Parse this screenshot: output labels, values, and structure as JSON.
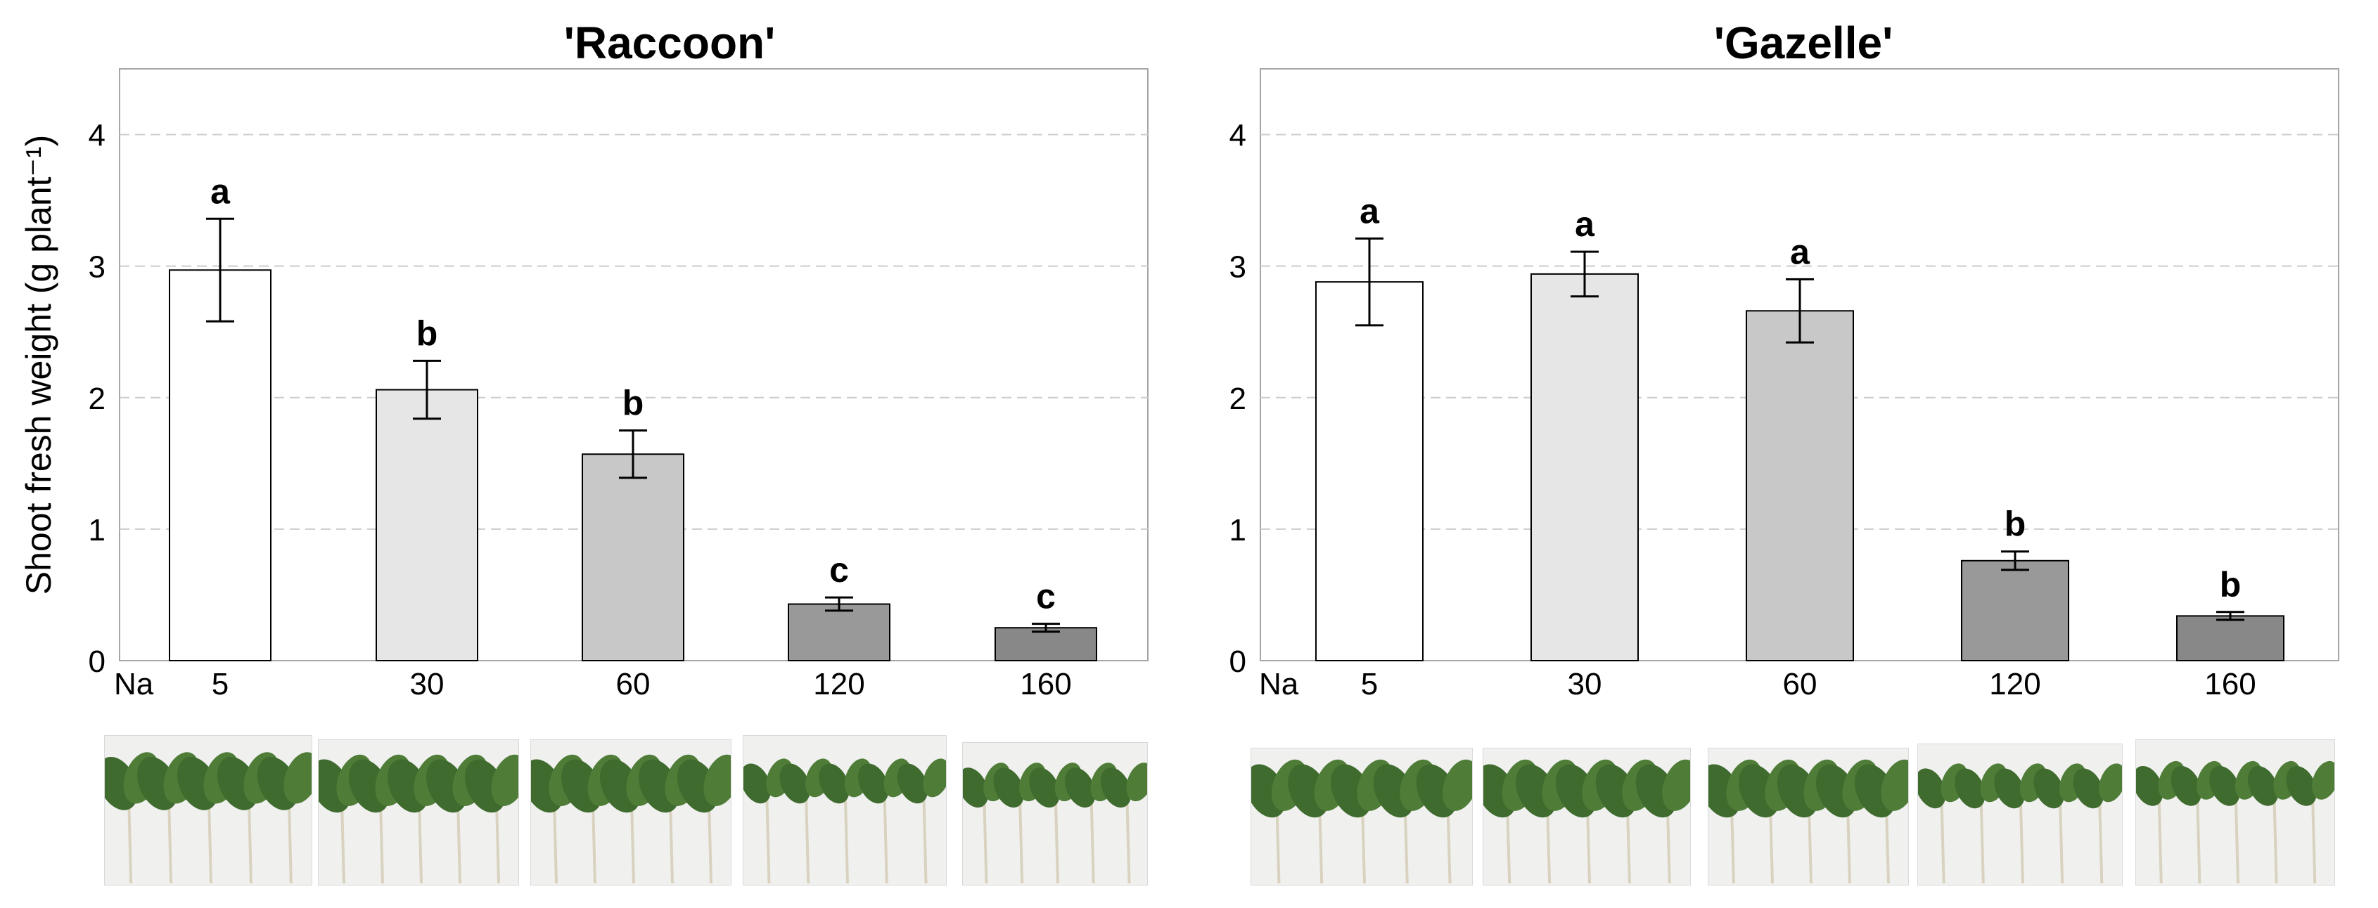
{
  "chart_data": [
    {
      "type": "bar",
      "title": "'Raccoon'",
      "ylabel": "Shoot fresh weight (g plant⁻¹)",
      "xlabel": "Na",
      "categories": [
        "5",
        "30",
        "60",
        "120",
        "160"
      ],
      "values": [
        2.97,
        2.06,
        1.57,
        0.43,
        0.25
      ],
      "errors": [
        0.39,
        0.22,
        0.18,
        0.05,
        0.03
      ],
      "letters": [
        "a",
        "b",
        "b",
        "c",
        "c"
      ],
      "bar_colors": [
        "#ffffff",
        "#e6e6e6",
        "#c8c8c8",
        "#999999",
        "#888888"
      ],
      "ylim": [
        0,
        4.5
      ],
      "yticks": [
        0,
        1,
        2,
        3,
        4
      ],
      "grid": true
    },
    {
      "type": "bar",
      "title": "'Gazelle'",
      "ylabel": "",
      "xlabel": "Na",
      "categories": [
        "5",
        "30",
        "60",
        "120",
        "160"
      ],
      "values": [
        2.88,
        2.94,
        2.66,
        0.76,
        0.34
      ],
      "errors": [
        0.33,
        0.17,
        0.24,
        0.07,
        0.03
      ],
      "letters": [
        "a",
        "a",
        "a",
        "b",
        "b"
      ],
      "bar_colors": [
        "#ffffff",
        "#e6e6e6",
        "#c8c8c8",
        "#999999",
        "#888888"
      ],
      "ylim": [
        0,
        4.5
      ],
      "yticks": [
        0,
        1,
        2,
        3,
        4
      ],
      "grid": true
    }
  ],
  "colors": {
    "grid": "#cccccc",
    "axis": "#a6a6a6",
    "text": "#000000",
    "photo_background": "#f0f0ef",
    "leaf": "#3f6b2e",
    "stem": "#d8d2bf"
  }
}
